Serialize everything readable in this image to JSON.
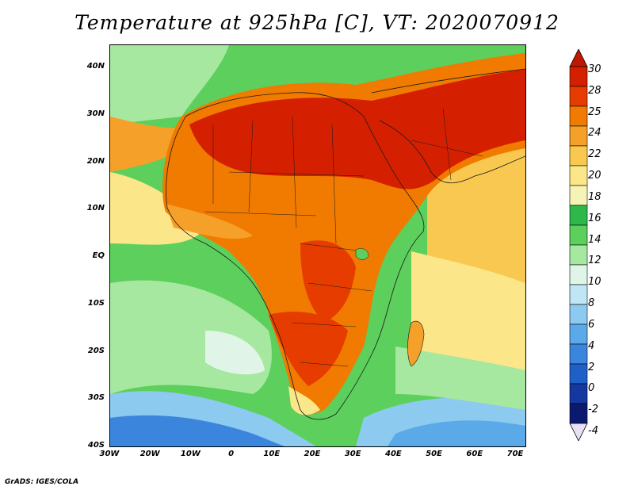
{
  "title": "Temperature at 925hPa [C], VT: 2020070912",
  "credit": "GrADS: IGES/COLA",
  "axes": {
    "lat_ticks": [
      "40N",
      "30N",
      "20N",
      "10N",
      "EQ",
      "10S",
      "20S",
      "30S",
      "40S"
    ],
    "lon_ticks": [
      "30W",
      "20W",
      "10W",
      "0",
      "10E",
      "20E",
      "30E",
      "40E",
      "50E",
      "60E",
      "70E"
    ]
  },
  "colorbar": {
    "labels": [
      "30",
      "28",
      "25",
      "24",
      "22",
      "20",
      "18",
      "16",
      "14",
      "12",
      "10",
      "8",
      "6",
      "4",
      "2",
      "0",
      "-2",
      "-4"
    ],
    "colors": [
      "#d42000",
      "#e63c00",
      "#f07b00",
      "#f5a028",
      "#f8c850",
      "#fbe68a",
      "#f5f3b5",
      "#2fb84a",
      "#5ccf5c",
      "#a6e8a0",
      "#e0f5e8",
      "#bfe6f5",
      "#8ccaf0",
      "#5aa9e8",
      "#3b86dc",
      "#1e5fc8",
      "#1338a0",
      "#0b1a6e"
    ],
    "top_arrow_color": "#c01800",
    "bottom_arrow_color": "#e8e0f8"
  },
  "field_colors": {
    "ocean_warm": "#f8c850",
    "ocean_mild": "#fbe68a",
    "ocean_green": "#5ccf5c",
    "ocean_light": "#a6e8a0",
    "ocean_pale": "#e0f5e8",
    "ocean_cool": "#8ccaf0",
    "ocean_cold": "#3b86dc",
    "land_hot": "#d42000",
    "land_warm": "#e63c00",
    "land_orange": "#f07b00",
    "land_light": "#f5a028",
    "border": "#1a1a1a"
  }
}
